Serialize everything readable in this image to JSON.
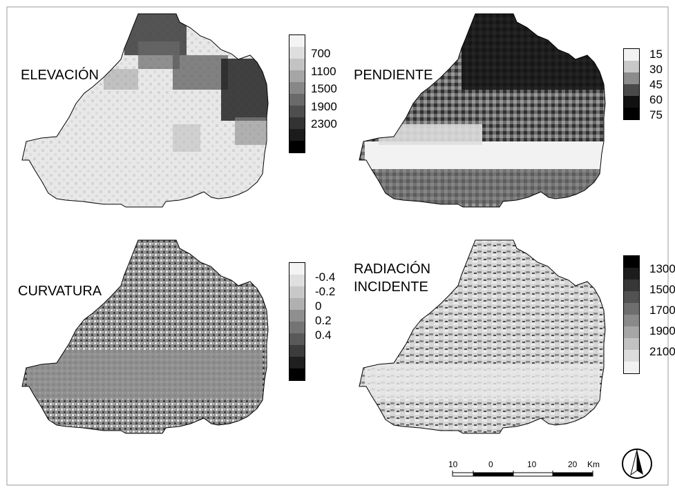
{
  "panels": {
    "elevacion": {
      "title": "ELEVACIÓN"
    },
    "pendiente": {
      "title": "PENDIENTE"
    },
    "curvatura": {
      "title": "CURVATURA"
    },
    "radiacion": {
      "title_line1": "RADIACIÓN",
      "title_line2": "INCIDENTE"
    }
  },
  "legends": {
    "elevacion": {
      "labels": [
        "700",
        "1100",
        "1500",
        "1900",
        "2300"
      ],
      "colors": [
        "#f4f4f4",
        "#dedede",
        "#c3c3c3",
        "#a5a5a5",
        "#878787",
        "#6a6a6a",
        "#4e4e4e",
        "#333333",
        "#1b1b1b",
        "#000000"
      ]
    },
    "pendiente": {
      "labels": [
        "15",
        "30",
        "45",
        "60",
        "75"
      ],
      "colors": [
        "#f2f2f2",
        "#c8c8c8",
        "#8c8c8c",
        "#4a4a4a",
        "#111111",
        "#000000"
      ]
    },
    "curvatura": {
      "labels": [
        "-0.4",
        "-0.2",
        "0",
        "0.2",
        "0.4"
      ],
      "colors": [
        "#f4f4f4",
        "#dfdfdf",
        "#c8c8c8",
        "#b0b0b0",
        "#8f8f8f",
        "#747474",
        "#595959",
        "#3c3c3c",
        "#1f1f1f",
        "#000000"
      ]
    },
    "radiacion": {
      "labels": [
        "1300",
        "1500",
        "1700",
        "1900",
        "2100"
      ],
      "colors": [
        "#000000",
        "#1c1c1c",
        "#373737",
        "#525252",
        "#6e6e6e",
        "#8a8a8a",
        "#a6a6a6",
        "#c2c2c2",
        "#dcdcdc",
        "#f2f2f2"
      ]
    }
  },
  "scale_bar": {
    "ticks": [
      "10",
      "0",
      "10",
      "20"
    ],
    "unit": "Km"
  },
  "north_arrow": {
    "icon": "north-arrow-icon"
  }
}
